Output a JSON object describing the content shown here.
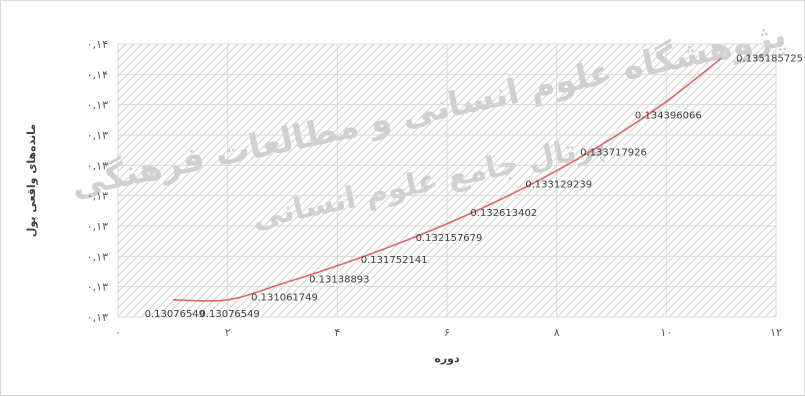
{
  "chart_data": {
    "type": "line",
    "title": "",
    "xlabel": "دوره",
    "ylabel": "مانده‌های واقعی پول",
    "xlim": [
      0,
      12
    ],
    "x_ticks": [
      {
        "value": 0,
        "label": "٠"
      },
      {
        "value": 2,
        "label": "٢"
      },
      {
        "value": 4,
        "label": "۴"
      },
      {
        "value": 6,
        "label": "۶"
      },
      {
        "value": 8,
        "label": "٨"
      },
      {
        "value": 10,
        "label": "١٠"
      },
      {
        "value": 12,
        "label": "١٢"
      }
    ],
    "y_tick_labels": [
      "٠,١۴",
      "٠,١۴",
      "٠,١٣",
      "٠,١٣",
      "٠,١٣",
      "٠,١٣",
      "٠,١٣",
      "٠,١٣",
      "٠,١٣",
      "٠,١٣"
    ],
    "ylim": [
      0.13045,
      0.13545
    ],
    "grid": true,
    "series": [
      {
        "color": "#e06666",
        "x": [
          1,
          2,
          3,
          4,
          5,
          6,
          7,
          8,
          9,
          10,
          11
        ],
        "values": [
          0.13076549,
          0.13076549,
          0.131061749,
          0.13138893,
          0.131752141,
          0.132157679,
          0.132613402,
          0.133129239,
          0.133717926,
          0.134396066,
          0.135185725
        ],
        "labels": [
          "0.13076549",
          "0.13076549",
          "0.131061749",
          "0.13138893",
          "0.131752141",
          "0.132157679",
          "0.132613402",
          "0.133129239",
          "0.133717926",
          "0.134396066",
          "0.135185725"
        ]
      }
    ]
  },
  "watermark": {
    "lines": [
      "پژوهشگاه علوم انسانی و مطالعات فرهنگی",
      "پرتال جامع علوم انسانی"
    ],
    "color": "#d0d0d0"
  }
}
